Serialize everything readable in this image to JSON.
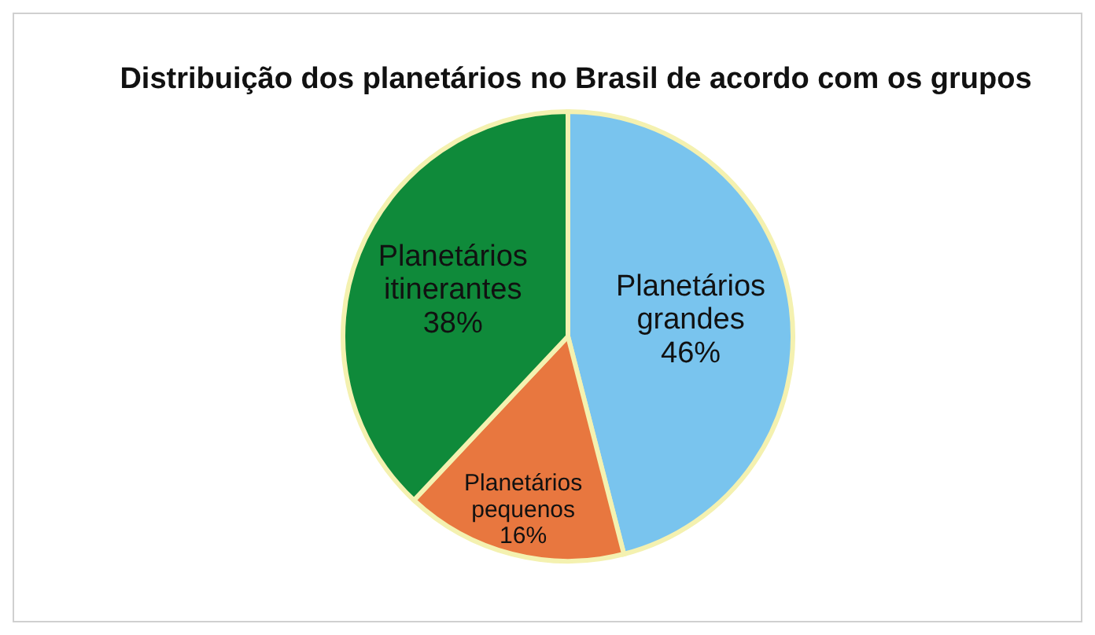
{
  "chart_data": {
    "type": "pie",
    "title": "Distribuição dos planetários no Brasil de acordo com os grupos",
    "categories": [
      "Planetários grandes",
      "Planetários pequenos",
      "Planetários itinerantes"
    ],
    "values": [
      46,
      16,
      38
    ],
    "colors": [
      "#79c4ee",
      "#e8773f",
      "#0f8a3a"
    ],
    "value_labels": [
      "46%",
      "16%",
      "38%"
    ]
  }
}
